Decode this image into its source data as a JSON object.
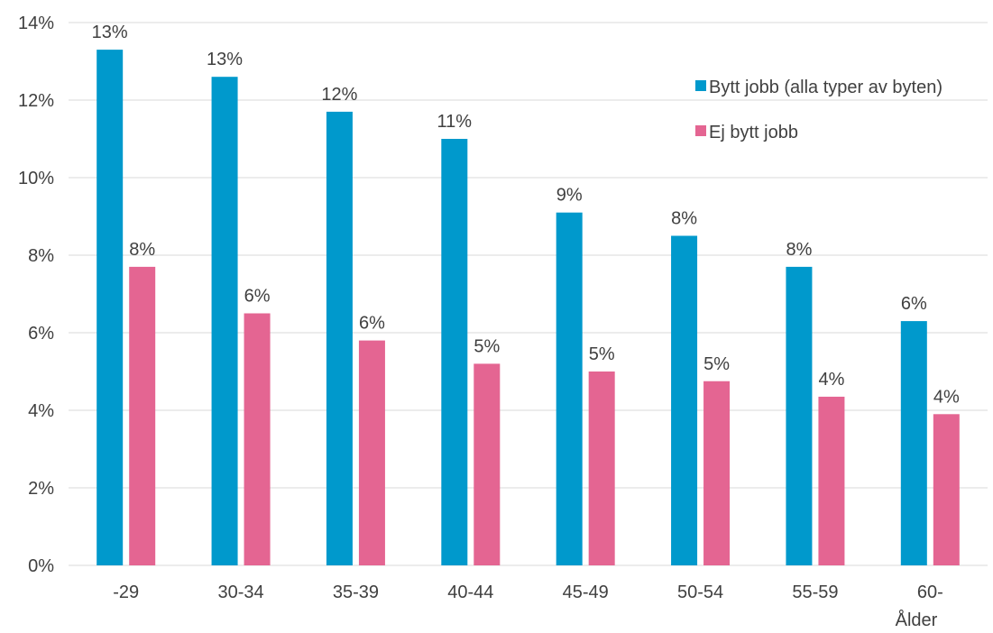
{
  "chart_data": {
    "type": "bar",
    "categories": [
      "-29",
      "30-34",
      "35-39",
      "40-44",
      "45-49",
      "50-54",
      "55-59",
      "60-"
    ],
    "series": [
      {
        "name": "Bytt jobb (alla typer av byten)",
        "color": "#0099CC",
        "values": [
          13.3,
          12.6,
          11.7,
          11.0,
          9.1,
          8.5,
          7.7,
          6.3
        ],
        "labels": [
          "13%",
          "13%",
          "12%",
          "11%",
          "9%",
          "8%",
          "8%",
          "6%"
        ]
      },
      {
        "name": "Ej bytt jobb",
        "color": "#E46592",
        "values": [
          7.7,
          6.5,
          5.8,
          5.2,
          5.0,
          4.75,
          4.35,
          3.9
        ],
        "labels": [
          "8%",
          "6%",
          "6%",
          "5%",
          "5%",
          "5%",
          "4%",
          "4%"
        ]
      }
    ],
    "xlabel": "Ålder",
    "ylabel": "",
    "ylim": [
      0,
      14
    ],
    "yticks": [
      0,
      2,
      4,
      6,
      8,
      10,
      12,
      14
    ],
    "ytick_labels": [
      "0%",
      "2%",
      "4%",
      "6%",
      "8%",
      "10%",
      "12%",
      "14%"
    ],
    "grid": true,
    "gridline_color": "#D9D9D9",
    "legend_position": "right"
  }
}
